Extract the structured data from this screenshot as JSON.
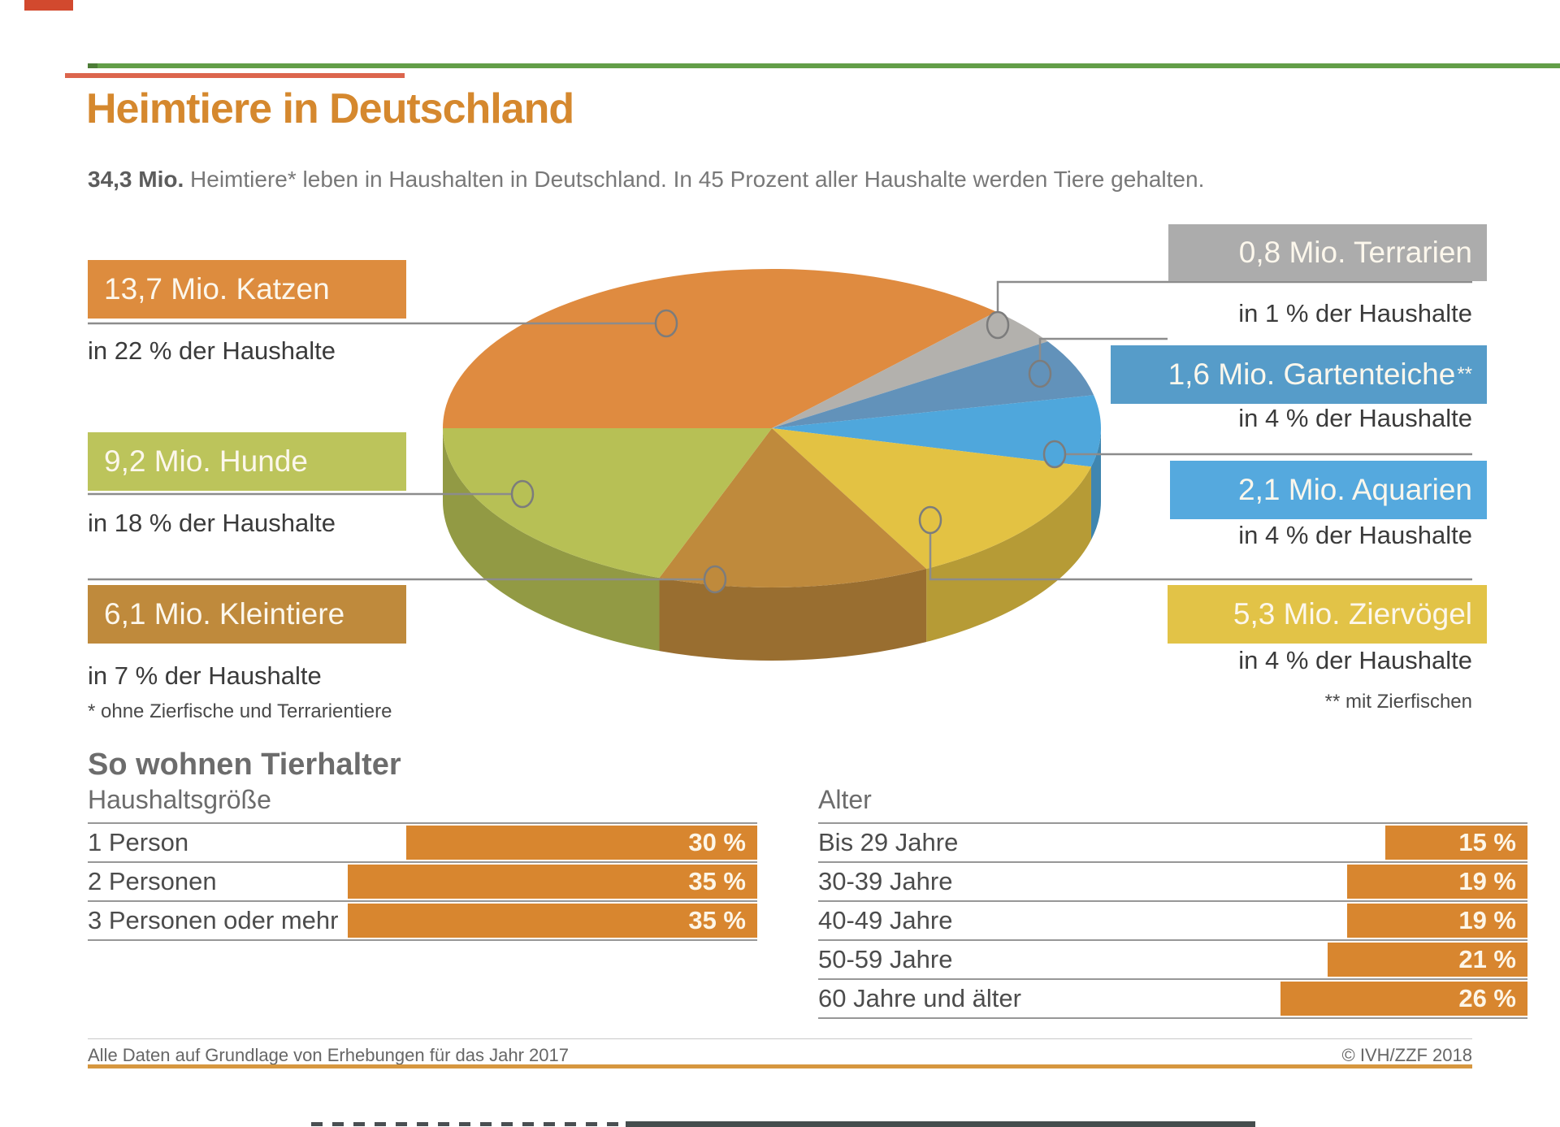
{
  "header": {
    "title": "Heimtiere in Deutschland",
    "subtitle_bold": "34,3 Mio.",
    "subtitle_rest": " Heimtiere* leben in Haushalten in Deutschland. In 45 Prozent aller Haushalte werden Tiere gehalten."
  },
  "footnotes": {
    "left": "* ohne Zierfische und Terrarientiere",
    "right": "** mit Zierfischen"
  },
  "section2_title": "So wohnen Tierhalter",
  "footer": {
    "left": "Alle Daten auf Grundlage von Erhebungen für das Jahr 2017",
    "right": "© IVH/ZZF 2018"
  },
  "colors": {
    "accent_orange": "#d5882e",
    "bar_orange": "#d8862f",
    "top_rule_green": "#639e48",
    "footer_rule_orange": "#d6973f"
  },
  "chart_data": [
    {
      "type": "pie",
      "title": "Heimtiere in Deutschland",
      "total_label": "34,3 Mio. Heimtiere",
      "unit": "Mio.",
      "slices": [
        {
          "name": "Katzen",
          "label": "13,7 Mio. Katzen",
          "value_mio": 13.7,
          "households_pct": 22,
          "sub": "in 22 % der Haushalte",
          "color": "#dd8c3e",
          "pie_color": "#df8b40"
        },
        {
          "name": "Terrarien",
          "label": "0,8 Mio. Terrarien",
          "value_mio": 0.8,
          "households_pct": 1,
          "sub": "in 1 % der Haushalte",
          "color": "#acacac",
          "pie_color": "#b3b1ad"
        },
        {
          "name": "Gartenteiche",
          "label": "1,6 Mio. Gartenteiche",
          "sup": "**",
          "value_mio": 1.6,
          "households_pct": 4,
          "sub": "in 4 % der Haushalte",
          "color": "#569cc9",
          "pie_color": "#6292ba"
        },
        {
          "name": "Aquarien",
          "label": "2,1 Mio. Aquarien",
          "value_mio": 2.1,
          "households_pct": 4,
          "sub": "in 4 % der Haushalte",
          "color": "#55a9de",
          "pie_color": "#4fa7dc"
        },
        {
          "name": "Ziervögel",
          "label": "5,3 Mio. Ziervögel",
          "value_mio": 5.3,
          "households_pct": 4,
          "sub": "in 4 % der Haushalte",
          "color": "#e2c347",
          "pie_color": "#e3c243"
        },
        {
          "name": "Kleintiere",
          "label": "6,1 Mio. Kleintiere",
          "value_mio": 6.1,
          "households_pct": 7,
          "sub": "in 7 % der Haushalte",
          "color": "#bf8a3c",
          "pie_color": "#bf8a3c"
        },
        {
          "name": "Hunde",
          "label": "9,2 Mio. Hunde",
          "value_mio": 9.2,
          "households_pct": 18,
          "sub": "in 18 % der Haushalte",
          "color": "#bcc45b",
          "pie_color": "#b7c055"
        }
      ]
    },
    {
      "type": "bar",
      "title": "Haushaltsgröße",
      "categories": [
        "1 Person",
        "2 Personen",
        "3 Personen oder mehr"
      ],
      "values": [
        30,
        35,
        35
      ],
      "rows": [
        {
          "label": "1 Person",
          "pct": 30,
          "pct_label": "30 %"
        },
        {
          "label": "2 Personen",
          "pct": 35,
          "pct_label": "35 %"
        },
        {
          "label": "3 Personen oder mehr",
          "pct": 35,
          "pct_label": "35 %"
        }
      ]
    },
    {
      "type": "bar",
      "title": "Alter",
      "categories": [
        "Bis 29 Jahre",
        "30-39 Jahre",
        "40-49 Jahre",
        "50-59 Jahre",
        "60 Jahre und älter"
      ],
      "values": [
        15,
        19,
        19,
        21,
        26
      ],
      "rows": [
        {
          "label": "Bis 29 Jahre",
          "pct": 15,
          "pct_label": "15 %"
        },
        {
          "label": "30-39 Jahre",
          "pct": 19,
          "pct_label": "19 %"
        },
        {
          "label": "40-49 Jahre",
          "pct": 19,
          "pct_label": "19 %"
        },
        {
          "label": "50-59 Jahre",
          "pct": 21,
          "pct_label": "21 %"
        },
        {
          "label": "60 Jahre und älter",
          "pct": 26,
          "pct_label": "26 %"
        }
      ]
    }
  ]
}
